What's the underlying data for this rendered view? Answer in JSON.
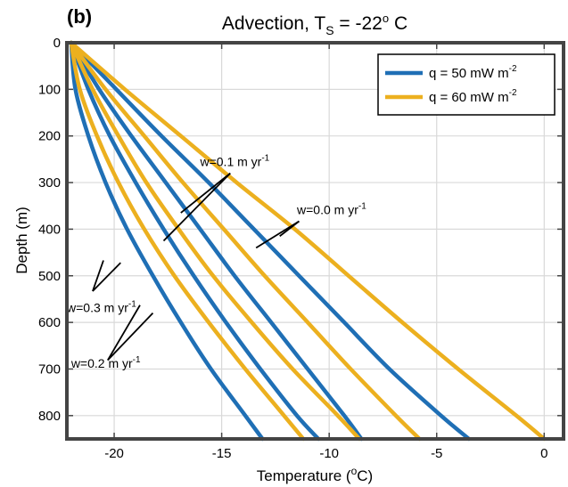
{
  "panel_label": "(b)",
  "chart_data": {
    "type": "line",
    "title": "Advection, T",
    "title_sub": "S",
    "title_tail": " = -22",
    "title_sup": "o",
    "title_end": " C",
    "xlabel": "Temperature (",
    "xlabel_sup": "o",
    "xlabel_end": "C)",
    "ylabel": "Depth (m)",
    "xlim": [
      -22.2,
      0.9
    ],
    "ylim": [
      0,
      850
    ],
    "y_reversed": true,
    "grid": true,
    "legend_position": "top-right",
    "x_ticks": [
      -20,
      -15,
      -10,
      -5,
      0
    ],
    "y_ticks": [
      0,
      100,
      200,
      300,
      400,
      500,
      600,
      700,
      800
    ],
    "colors": {
      "q50": "#1f6fb5",
      "q60": "#ecb01f"
    },
    "legend": [
      {
        "label": "q = 50 mW m",
        "sup": "-2",
        "color": "#1f6fb5"
      },
      {
        "label": "q = 60 mW m",
        "sup": "-2",
        "color": "#ecb01f"
      }
    ],
    "depths": [
      0,
      100,
      200,
      300,
      400,
      500,
      600,
      700,
      800,
      850
    ],
    "series": [
      {
        "group": "w=0.0 m yr-1",
        "q": 50,
        "color": "#1f6fb5",
        "temps": [
          -22.0,
          -19.9,
          -17.8,
          -15.6,
          -13.5,
          -11.4,
          -9.3,
          -7.2,
          -4.8,
          -3.5
        ]
      },
      {
        "group": "w=0.0 m yr-1",
        "q": 60,
        "color": "#ecb01f",
        "temps": [
          -22.0,
          -19.5,
          -16.9,
          -14.3,
          -11.6,
          -9.1,
          -6.6,
          -4.0,
          -1.3,
          0.0
        ]
      },
      {
        "group": "w=0.1 m yr-1",
        "q": 50,
        "color": "#1f6fb5",
        "temps": [
          -22.0,
          -20.7,
          -19.2,
          -17.6,
          -16.0,
          -14.4,
          -12.7,
          -11.0,
          -9.3,
          -8.5
        ]
      },
      {
        "group": "w=0.1 m yr-1",
        "q": 60,
        "color": "#ecb01f",
        "temps": [
          -22.0,
          -20.4,
          -18.6,
          -16.8,
          -14.9,
          -13.0,
          -11.0,
          -9.0,
          -6.9,
          -5.8
        ]
      },
      {
        "group": "w=0.2 m yr-1",
        "q": 50,
        "color": "#1f6fb5",
        "temps": [
          -22.0,
          -21.2,
          -20.2,
          -19.0,
          -17.7,
          -16.3,
          -14.8,
          -13.2,
          -11.5,
          -10.5
        ]
      },
      {
        "group": "w=0.2 m yr-1",
        "q": 60,
        "color": "#ecb01f",
        "temps": [
          -22.0,
          -21.0,
          -19.8,
          -18.5,
          -17.0,
          -15.4,
          -13.6,
          -11.7,
          -9.6,
          -8.6
        ]
      },
      {
        "group": "w=0.3 m yr-1",
        "q": 50,
        "color": "#1f6fb5",
        "temps": [
          -22.0,
          -21.8,
          -21.2,
          -20.4,
          -19.4,
          -18.2,
          -16.9,
          -15.5,
          -13.9,
          -13.1
        ]
      },
      {
        "group": "w=0.3 m yr-1",
        "q": 60,
        "color": "#ecb01f",
        "temps": [
          -22.0,
          -21.6,
          -20.8,
          -19.8,
          -18.6,
          -17.2,
          -15.6,
          -13.9,
          -12.1,
          -11.2
        ]
      }
    ],
    "annotations": [
      {
        "text": "w=0.1 m yr",
        "sup": "-1",
        "x": -16.0,
        "y": 265,
        "arrow_from": [
          -14.6,
          280
        ],
        "arrow_to": [
          [
            -16.9,
            365
          ],
          [
            -17.7,
            425
          ]
        ]
      },
      {
        "text": "w=0.0 m yr",
        "sup": "-1",
        "x": -11.5,
        "y": 368,
        "arrow_from": [
          -11.4,
          383
        ],
        "arrow_to": [
          [
            -12.3,
            415
          ],
          [
            -13.4,
            440
          ]
        ]
      },
      {
        "text": "w=0.3 m yr",
        "sup": "-1",
        "x": -22.2,
        "y": 578,
        "arrow_from": [
          -21.0,
          533
        ],
        "arrow_to": [
          [
            -19.7,
            472
          ],
          [
            -20.5,
            467
          ]
        ]
      },
      {
        "text": "w=0.2 m yr",
        "sup": "-1",
        "x": -22.0,
        "y": 697,
        "arrow_from": [
          -20.3,
          681
        ],
        "arrow_to": [
          [
            -18.2,
            580
          ],
          [
            -18.8,
            563
          ]
        ]
      }
    ]
  }
}
